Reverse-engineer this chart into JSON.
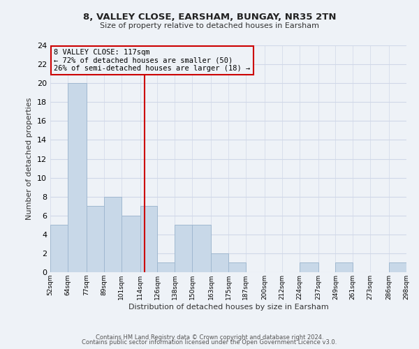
{
  "title1": "8, VALLEY CLOSE, EARSHAM, BUNGAY, NR35 2TN",
  "title2": "Size of property relative to detached houses in Earsham",
  "xlabel": "Distribution of detached houses by size in Earsham",
  "ylabel": "Number of detached properties",
  "bar_edges": [
    52,
    64,
    77,
    89,
    101,
    114,
    126,
    138,
    150,
    163,
    175,
    187,
    200,
    212,
    224,
    237,
    249,
    261,
    273,
    286,
    298
  ],
  "bar_heights": [
    5,
    20,
    7,
    8,
    6,
    7,
    1,
    5,
    5,
    2,
    1,
    0,
    0,
    0,
    1,
    0,
    1,
    0,
    0,
    1
  ],
  "bar_color": "#c8d8e8",
  "bar_edge_color": "#a0b8d0",
  "grid_color": "#d0d8e8",
  "reference_line_x": 117,
  "reference_line_color": "#cc0000",
  "annotation_box_edge_color": "#cc0000",
  "annotation_line1": "8 VALLEY CLOSE: 117sqm",
  "annotation_line2": "← 72% of detached houses are smaller (50)",
  "annotation_line3": "26% of semi-detached houses are larger (18) →",
  "ylim": [
    0,
    24
  ],
  "yticks": [
    0,
    2,
    4,
    6,
    8,
    10,
    12,
    14,
    16,
    18,
    20,
    22,
    24
  ],
  "xtick_labels": [
    "52sqm",
    "64sqm",
    "77sqm",
    "89sqm",
    "101sqm",
    "114sqm",
    "126sqm",
    "138sqm",
    "150sqm",
    "163sqm",
    "175sqm",
    "187sqm",
    "200sqm",
    "212sqm",
    "224sqm",
    "237sqm",
    "249sqm",
    "261sqm",
    "273sqm",
    "286sqm",
    "298sqm"
  ],
  "footer1": "Contains HM Land Registry data © Crown copyright and database right 2024.",
  "footer2": "Contains public sector information licensed under the Open Government Licence v3.0.",
  "background_color": "#eef2f7"
}
